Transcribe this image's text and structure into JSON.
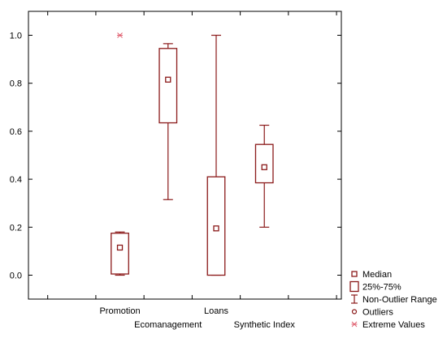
{
  "chart_data": {
    "type": "box",
    "title": "",
    "xlabel": "",
    "ylabel": "",
    "ylim": [
      -0.1,
      1.1
    ],
    "yticks": [
      0.0,
      0.2,
      0.4,
      0.6,
      0.8,
      1.0
    ],
    "ytick_labels": [
      "0.0",
      "0.2",
      "0.4",
      "0.6",
      "0.8",
      "1.0"
    ],
    "grid": false,
    "legend_position": "bottom-right",
    "colors": {
      "box": "#8b1a1a",
      "extreme": "#e06070",
      "frame": "#000000"
    },
    "categories": [
      "Promotion",
      "Ecomanagement",
      "Loans",
      "Synthetic Index"
    ],
    "boxes": [
      {
        "category": "Promotion",
        "median": 0.115,
        "q1": 0.005,
        "q3": 0.175,
        "whisker_low": 0.0,
        "whisker_high": 0.18,
        "outliers": [],
        "extremes": [
          1.0
        ]
      },
      {
        "category": "Ecomanagement",
        "median": 0.815,
        "q1": 0.635,
        "q3": 0.945,
        "whisker_low": 0.315,
        "whisker_high": 0.965,
        "outliers": [],
        "extremes": []
      },
      {
        "category": "Loans",
        "median": 0.195,
        "q1": 0.0,
        "q3": 0.41,
        "whisker_low": 0.0,
        "whisker_high": 1.0,
        "outliers": [],
        "extremes": []
      },
      {
        "category": "Synthetic Index",
        "median": 0.45,
        "q1": 0.385,
        "q3": 0.545,
        "whisker_low": 0.2,
        "whisker_high": 0.625,
        "outliers": [],
        "extremes": []
      }
    ],
    "legend": [
      {
        "symbol": "median",
        "label": "Median"
      },
      {
        "symbol": "box",
        "label": "25%-75%"
      },
      {
        "symbol": "whisker",
        "label": "Non-Outlier Range"
      },
      {
        "symbol": "outlier",
        "label": "Outliers"
      },
      {
        "symbol": "extreme",
        "label": "Extreme Values"
      }
    ]
  }
}
